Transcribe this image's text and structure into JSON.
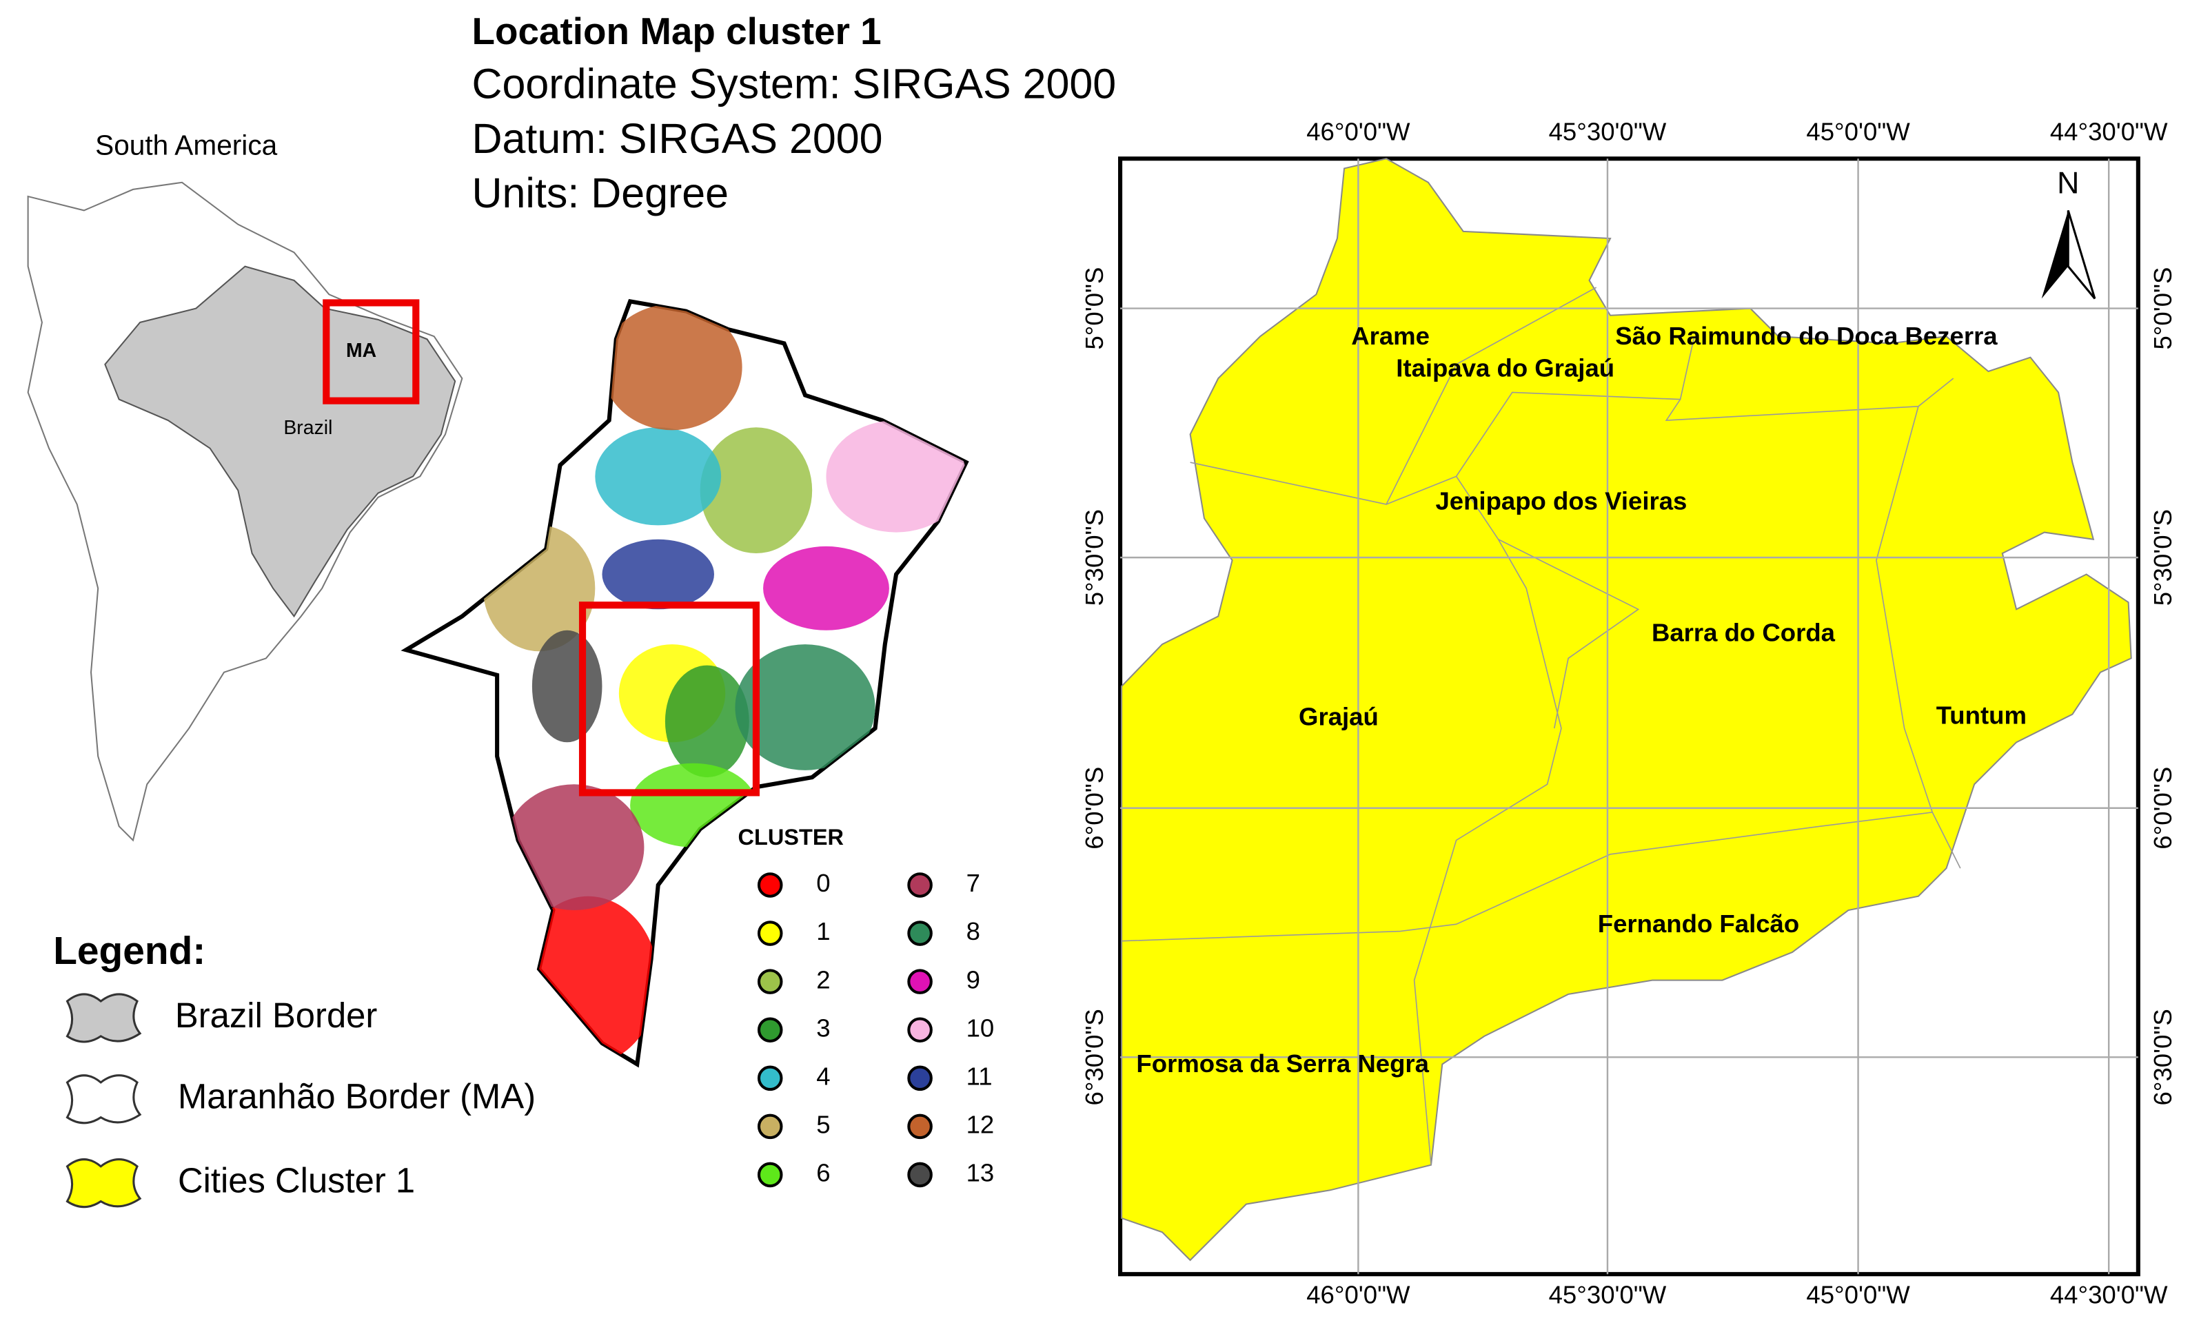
{
  "title": {
    "lines": [
      "Location Map cluster 1",
      "Coordinate System: SIRGAS 2000",
      "Datum: SIRGAS 2000",
      "Units: Degree"
    ]
  },
  "inset": {
    "region": "South America",
    "country": "Brazil",
    "state": "MA"
  },
  "legend": {
    "title": "Legend:",
    "items": [
      {
        "label": "Brazil Border",
        "color": "#c8c8c8"
      },
      {
        "label": "Maranhão Border (MA)",
        "color": "#ffffff"
      },
      {
        "label": "Cities Cluster 1",
        "color": "#ffff00"
      }
    ]
  },
  "clusters": {
    "title": "CLUSTER",
    "items": [
      {
        "label": "0",
        "color": "#ff0000"
      },
      {
        "label": "1",
        "color": "#ffff00"
      },
      {
        "label": "2",
        "color": "#9dc34a"
      },
      {
        "label": "3",
        "color": "#2f9a2f"
      },
      {
        "label": "4",
        "color": "#33bccb"
      },
      {
        "label": "5",
        "color": "#c8b062"
      },
      {
        "label": "6",
        "color": "#5ee81a"
      },
      {
        "label": "7",
        "color": "#b03a5b"
      },
      {
        "label": "8",
        "color": "#2e8b5a"
      },
      {
        "label": "9",
        "color": "#e012b4"
      },
      {
        "label": "10",
        "color": "#f8b4e0"
      },
      {
        "label": "11",
        "color": "#2b409a"
      },
      {
        "label": "12",
        "color": "#c2622c"
      },
      {
        "label": "13",
        "color": "#4a4a4a"
      }
    ]
  },
  "map": {
    "north": "N",
    "longitudes": [
      "46°0'0\"W",
      "45°30'0\"W",
      "45°0'0\"W",
      "44°30'0\"W"
    ],
    "latitudes": [
      "5°0'0\"S",
      "5°30'0\"S",
      "6°0'0\"S",
      "6°30'0\"S"
    ],
    "cities": [
      "Arame",
      "Itaipava do Grajaú",
      "São Raimundo do Doca Bezerra",
      "Jenipapo dos Vieiras",
      "Barra do Corda",
      "Grajaú",
      "Tuntum",
      "Fernando Falcão",
      "Formosa da Serra Negra"
    ]
  }
}
